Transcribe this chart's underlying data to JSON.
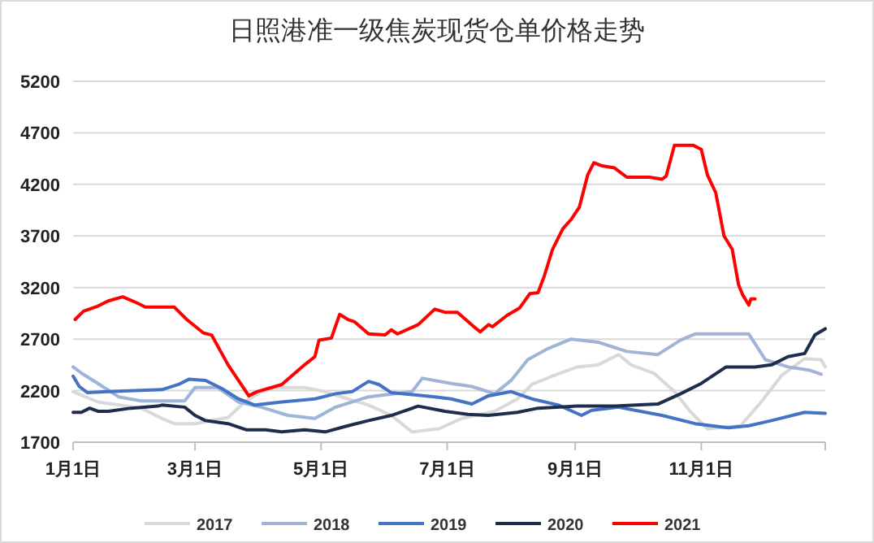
{
  "chart_data": {
    "type": "line",
    "title": "日照港准一级焦炭现货仓单价格走势",
    "xlim": [
      "--01-01",
      "--12-31"
    ],
    "xticks": [
      {
        "value": "--01-01",
        "label": "1月1日"
      },
      {
        "value": "--03-01",
        "label": "3月1日"
      },
      {
        "value": "--05-01",
        "label": "5月1日"
      },
      {
        "value": "--07-01",
        "label": "7月1日"
      },
      {
        "value": "--09-01",
        "label": "9月1日"
      },
      {
        "value": "--11-01",
        "label": "11月1日"
      },
      {
        "value": "--12-31",
        "label": null
      }
    ],
    "ylim": [
      1700,
      5200
    ],
    "yticks": [
      1700,
      2200,
      2700,
      3200,
      3700,
      4200,
      4700,
      5200
    ],
    "grid": "y",
    "legend": "bottom",
    "marker": "none",
    "line_style": "solid",
    "series": [
      {
        "name": "2017",
        "color": "#d9d9d9",
        "x": [
          "--01-01",
          "--01-13",
          "--02-03",
          "--02-13",
          "--02-19",
          "--03-01",
          "--03-17",
          "--03-25",
          "--04-02",
          "--04-09",
          "--04-23",
          "--05-03",
          "--05-14",
          "--05-24",
          "--06-04",
          "--06-14",
          "--06-27",
          "--07-08",
          "--07-24",
          "--08-04",
          "--08-11",
          "--08-22",
          "--09-02",
          "--09-12",
          "--09-22",
          "--09-28",
          "--10-09",
          "--10-19",
          "--10-27",
          "--11-04",
          "--11-20",
          "--11-30",
          "--12-10",
          "--12-21",
          "--12-29",
          "--12-31"
        ],
        "values": [
          2190,
          2090,
          2030,
          1930,
          1880,
          1880,
          1940,
          2090,
          2190,
          2230,
          2230,
          2190,
          2120,
          2060,
          1960,
          1800,
          1830,
          1930,
          2000,
          2120,
          2260,
          2350,
          2430,
          2450,
          2550,
          2450,
          2370,
          2190,
          1990,
          1830,
          1860,
          2090,
          2350,
          2510,
          2500,
          2430
        ]
      },
      {
        "name": "2018",
        "color": "#9fb4d9",
        "x": [
          "--01-01",
          "--01-05",
          "--01-13",
          "--01-23",
          "--02-03",
          "--02-24",
          "--03-01",
          "--03-12",
          "--03-22",
          "--04-02",
          "--04-15",
          "--04-28",
          "--05-08",
          "--05-24",
          "--06-14",
          "--06-19",
          "--07-03",
          "--07-13",
          "--07-24",
          "--08-01",
          "--08-09",
          "--08-19",
          "--08-30",
          "--09-12",
          "--09-26",
          "--10-11",
          "--10-22",
          "--10-29",
          "--11-24",
          "--12-02",
          "--12-13",
          "--12-23",
          "--12-29"
        ],
        "values": [
          2430,
          2370,
          2270,
          2140,
          2100,
          2100,
          2230,
          2230,
          2090,
          2040,
          1960,
          1930,
          2040,
          2140,
          2190,
          2320,
          2270,
          2240,
          2170,
          2300,
          2500,
          2610,
          2700,
          2670,
          2580,
          2550,
          2690,
          2750,
          2750,
          2500,
          2430,
          2400,
          2360
        ]
      },
      {
        "name": "2019",
        "color": "#4472c4",
        "x": [
          "--01-01",
          "--01-04",
          "--01-08",
          "--01-18",
          "--02-13",
          "--02-21",
          "--02-26",
          "--03-06",
          "--03-14",
          "--03-22",
          "--03-30",
          "--04-12",
          "--04-28",
          "--05-08",
          "--05-16",
          "--05-24",
          "--05-29",
          "--06-04",
          "--06-25",
          "--07-03",
          "--07-13",
          "--07-21",
          "--08-01",
          "--08-11",
          "--08-24",
          "--09-04",
          "--09-09",
          "--09-22",
          "--10-13",
          "--10-29",
          "--11-14",
          "--11-24",
          "--12-05",
          "--12-21",
          "--12-31"
        ],
        "values": [
          2340,
          2240,
          2180,
          2190,
          2210,
          2260,
          2310,
          2300,
          2220,
          2120,
          2060,
          2090,
          2120,
          2170,
          2190,
          2290,
          2260,
          2180,
          2140,
          2120,
          2070,
          2150,
          2190,
          2120,
          2060,
          1960,
          2010,
          2040,
          1960,
          1880,
          1840,
          1860,
          1910,
          1990,
          1980
        ]
      },
      {
        "name": "2020",
        "color": "#1f2d4d",
        "x": [
          "--01-01",
          "--01-05",
          "--01-09",
          "--01-13",
          "--01-18",
          "--01-29",
          "--02-11",
          "--02-13",
          "--02-24",
          "--03-01",
          "--03-06",
          "--03-17",
          "--03-26",
          "--04-04",
          "--04-12",
          "--04-23",
          "--05-03",
          "--05-14",
          "--05-24",
          "--06-04",
          "--06-17",
          "--06-30",
          "--07-11",
          "--07-21",
          "--08-04",
          "--08-14",
          "--09-02",
          "--09-20",
          "--10-11",
          "--10-22",
          "--11-01",
          "--11-13",
          "--11-27",
          "--12-05",
          "--12-13",
          "--12-21",
          "--12-26",
          "--12-31"
        ],
        "values": [
          1990,
          1990,
          2030,
          2000,
          2000,
          2030,
          2050,
          2060,
          2040,
          1960,
          1910,
          1880,
          1820,
          1820,
          1800,
          1820,
          1800,
          1860,
          1910,
          1960,
          2050,
          2000,
          1970,
          1960,
          1990,
          2030,
          2050,
          2050,
          2070,
          2170,
          2270,
          2430,
          2430,
          2450,
          2530,
          2560,
          2740,
          2800
        ]
      },
      {
        "name": "2021",
        "color": "#ff0000",
        "x": [
          "--01-02",
          "--01-06",
          "--01-13",
          "--01-18",
          "--01-25",
          "--02-01",
          "--02-05",
          "--02-19",
          "--02-25",
          "--03-05",
          "--03-09",
          "--03-17",
          "--03-22",
          "--03-27",
          "--03-31",
          "--04-12",
          "--04-23",
          "--04-28",
          "--04-30",
          "--05-06",
          "--05-10",
          "--05-14",
          "--05-17",
          "--05-24",
          "--06-01",
          "--06-04",
          "--06-07",
          "--06-17",
          "--06-25",
          "--06-30",
          "--07-06",
          "--07-14",
          "--07-17",
          "--07-21",
          "--07-23",
          "--07-30",
          "--08-05",
          "--08-10",
          "--08-14",
          "--08-17",
          "--08-21",
          "--08-26",
          "--08-30",
          "--09-03",
          "--09-07",
          "--09-10",
          "--09-14",
          "--09-20",
          "--09-26",
          "--10-07",
          "--10-13",
          "--10-15",
          "--10-19",
          "--10-28",
          "--11-01",
          "--11-04",
          "--11-08",
          "--11-12",
          "--11-16",
          "--11-19",
          "--11-21",
          "--11-24",
          "--11-25",
          "--11-27"
        ],
        "values": [
          2890,
          2970,
          3020,
          3070,
          3110,
          3050,
          3010,
          3010,
          2890,
          2760,
          2740,
          2450,
          2300,
          2150,
          2190,
          2260,
          2450,
          2530,
          2690,
          2710,
          2940,
          2890,
          2870,
          2750,
          2740,
          2790,
          2750,
          2840,
          2990,
          2960,
          2960,
          2820,
          2770,
          2840,
          2820,
          2930,
          3000,
          3140,
          3150,
          3310,
          3570,
          3770,
          3860,
          3980,
          4290,
          4410,
          4380,
          4360,
          4270,
          4270,
          4250,
          4280,
          4580,
          4580,
          4540,
          4290,
          4120,
          3700,
          3570,
          3230,
          3130,
          3030,
          3090,
          3090
        ]
      }
    ]
  }
}
